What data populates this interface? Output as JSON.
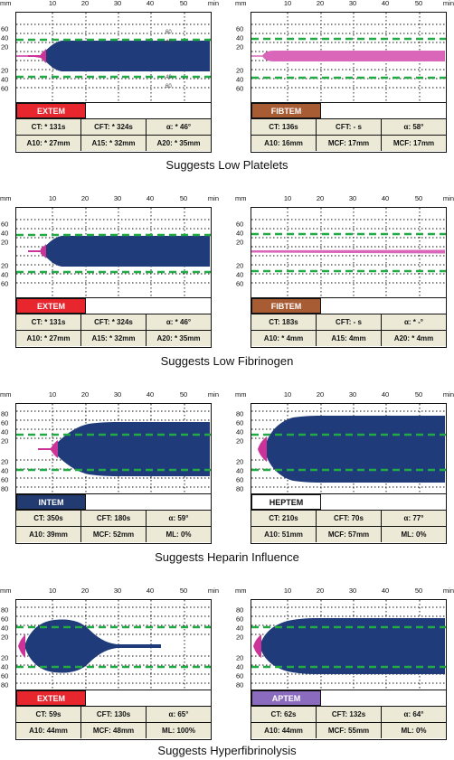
{
  "axis": {
    "x_unit_left": "mm",
    "x_unit_right": "min",
    "x_ticks": [
      "10",
      "20",
      "30",
      "40",
      "50"
    ],
    "y_ticks_upper": [
      "60",
      "40",
      "20"
    ],
    "y_ticks_lower": [
      "20",
      "40",
      "60"
    ],
    "y_ticks_upper_ext": [
      "80",
      "60",
      "40",
      "20"
    ],
    "y_ticks_lower_ext": [
      "20",
      "40",
      "60",
      "80"
    ]
  },
  "colors": {
    "curve_blue": "#1f3b7a",
    "curve_magenta": "#cc3399",
    "curve_pink": "#d966b8",
    "dash_green": "#22aa44",
    "extem_red": "#e8262d",
    "fibtem_brown": "#a85c34",
    "intem_navy": "#223b70",
    "aptem_purple": "#8b6bbd",
    "table_bg": "#ece9d7"
  },
  "panels": [
    {
      "label": "EXTEM",
      "inplot_labels": [
        "60",
        "40",
        "40",
        "60"
      ],
      "row1": [
        "CT: * 131s",
        "CFT: * 324s",
        "α: * 46°"
      ],
      "row2": [
        "A10: * 27mm",
        "A15: * 32mm",
        "A20: * 35mm"
      ]
    },
    {
      "label": "FIBTEM",
      "row1": [
        "CT: 136s",
        "CFT: - s",
        "α: 58°"
      ],
      "row2": [
        "A10: 16mm",
        "MCF: 17mm",
        "MCF: 17mm"
      ]
    },
    {
      "label": "EXTEM",
      "row1": [
        "CT: * 131s",
        "CFT: * 324s",
        "α: * 46°"
      ],
      "row2": [
        "A10: * 27mm",
        "A15: * 32mm",
        "A20: * 35mm"
      ]
    },
    {
      "label": "FIBTEM",
      "row1": [
        "CT: 183s",
        "CFT: - s",
        "α: * -°"
      ],
      "row2": [
        "A10: * 4mm",
        "A15: 4mm",
        "A20: * 4mm"
      ]
    },
    {
      "label": "INTEM",
      "row1": [
        "CT: 350s",
        "CFT: 180s",
        "α: 59°"
      ],
      "row2": [
        "A10: 39mm",
        "MCF: 52mm",
        "ML: 0%"
      ]
    },
    {
      "label": "HEPTEM",
      "row1": [
        "CT: 210s",
        "CFT: 70s",
        "α: 77°"
      ],
      "row2": [
        "A10: 51mm",
        "MCF: 57mm",
        "ML: 0%"
      ]
    },
    {
      "label": "EXTEM",
      "row1": [
        "CT: 59s",
        "CFT: 130s",
        "α: 65°"
      ],
      "row2": [
        "A10: 44mm",
        "MCF: 48mm",
        "ML: 100%"
      ]
    },
    {
      "label": "APTEM",
      "row1": [
        "CT: 62s",
        "CFT: 132s",
        "α: 64°"
      ],
      "row2": [
        "A10: 44mm",
        "MCF: 55mm",
        "ML: 0%"
      ]
    }
  ],
  "captions": [
    "Suggests Low Platelets",
    "Suggests Low Fibrinogen",
    "Suggests Heparin Influence",
    "Suggests Hyperfibrinolysis"
  ]
}
